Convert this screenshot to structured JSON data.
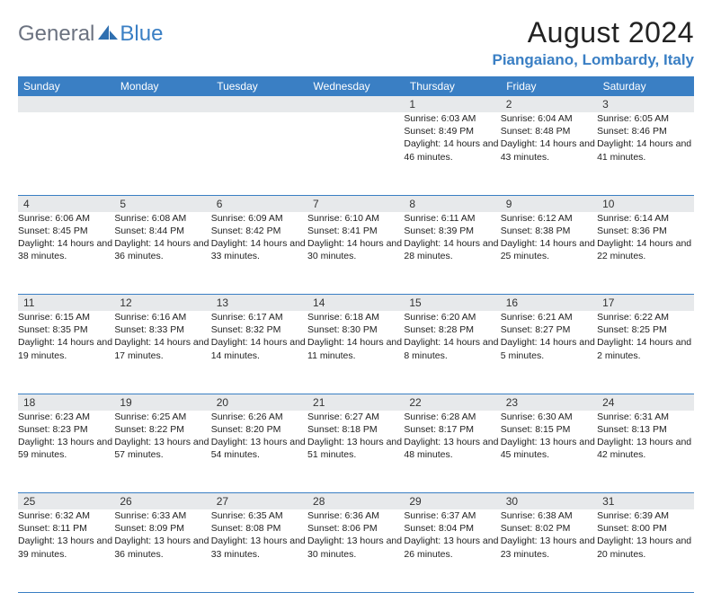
{
  "logo": {
    "general": "General",
    "blue": "Blue"
  },
  "title": "August 2024",
  "location": "Piangaiano, Lombardy, Italy",
  "colors": {
    "brand_blue": "#3a7fc4",
    "logo_gray": "#6b7280",
    "header_bg": "#3a7fc4",
    "header_text": "#ffffff",
    "daynum_bg": "#e7e9eb",
    "rule": "#3a7fc4",
    "page_bg": "#ffffff"
  },
  "weekdays": [
    "Sunday",
    "Monday",
    "Tuesday",
    "Wednesday",
    "Thursday",
    "Friday",
    "Saturday"
  ],
  "weeks": [
    [
      null,
      null,
      null,
      null,
      {
        "n": "1",
        "sunrise": "Sunrise: 6:03 AM",
        "sunset": "Sunset: 8:49 PM",
        "daylight": "Daylight: 14 hours and 46 minutes."
      },
      {
        "n": "2",
        "sunrise": "Sunrise: 6:04 AM",
        "sunset": "Sunset: 8:48 PM",
        "daylight": "Daylight: 14 hours and 43 minutes."
      },
      {
        "n": "3",
        "sunrise": "Sunrise: 6:05 AM",
        "sunset": "Sunset: 8:46 PM",
        "daylight": "Daylight: 14 hours and 41 minutes."
      }
    ],
    [
      {
        "n": "4",
        "sunrise": "Sunrise: 6:06 AM",
        "sunset": "Sunset: 8:45 PM",
        "daylight": "Daylight: 14 hours and 38 minutes."
      },
      {
        "n": "5",
        "sunrise": "Sunrise: 6:08 AM",
        "sunset": "Sunset: 8:44 PM",
        "daylight": "Daylight: 14 hours and 36 minutes."
      },
      {
        "n": "6",
        "sunrise": "Sunrise: 6:09 AM",
        "sunset": "Sunset: 8:42 PM",
        "daylight": "Daylight: 14 hours and 33 minutes."
      },
      {
        "n": "7",
        "sunrise": "Sunrise: 6:10 AM",
        "sunset": "Sunset: 8:41 PM",
        "daylight": "Daylight: 14 hours and 30 minutes."
      },
      {
        "n": "8",
        "sunrise": "Sunrise: 6:11 AM",
        "sunset": "Sunset: 8:39 PM",
        "daylight": "Daylight: 14 hours and 28 minutes."
      },
      {
        "n": "9",
        "sunrise": "Sunrise: 6:12 AM",
        "sunset": "Sunset: 8:38 PM",
        "daylight": "Daylight: 14 hours and 25 minutes."
      },
      {
        "n": "10",
        "sunrise": "Sunrise: 6:14 AM",
        "sunset": "Sunset: 8:36 PM",
        "daylight": "Daylight: 14 hours and 22 minutes."
      }
    ],
    [
      {
        "n": "11",
        "sunrise": "Sunrise: 6:15 AM",
        "sunset": "Sunset: 8:35 PM",
        "daylight": "Daylight: 14 hours and 19 minutes."
      },
      {
        "n": "12",
        "sunrise": "Sunrise: 6:16 AM",
        "sunset": "Sunset: 8:33 PM",
        "daylight": "Daylight: 14 hours and 17 minutes."
      },
      {
        "n": "13",
        "sunrise": "Sunrise: 6:17 AM",
        "sunset": "Sunset: 8:32 PM",
        "daylight": "Daylight: 14 hours and 14 minutes."
      },
      {
        "n": "14",
        "sunrise": "Sunrise: 6:18 AM",
        "sunset": "Sunset: 8:30 PM",
        "daylight": "Daylight: 14 hours and 11 minutes."
      },
      {
        "n": "15",
        "sunrise": "Sunrise: 6:20 AM",
        "sunset": "Sunset: 8:28 PM",
        "daylight": "Daylight: 14 hours and 8 minutes."
      },
      {
        "n": "16",
        "sunrise": "Sunrise: 6:21 AM",
        "sunset": "Sunset: 8:27 PM",
        "daylight": "Daylight: 14 hours and 5 minutes."
      },
      {
        "n": "17",
        "sunrise": "Sunrise: 6:22 AM",
        "sunset": "Sunset: 8:25 PM",
        "daylight": "Daylight: 14 hours and 2 minutes."
      }
    ],
    [
      {
        "n": "18",
        "sunrise": "Sunrise: 6:23 AM",
        "sunset": "Sunset: 8:23 PM",
        "daylight": "Daylight: 13 hours and 59 minutes."
      },
      {
        "n": "19",
        "sunrise": "Sunrise: 6:25 AM",
        "sunset": "Sunset: 8:22 PM",
        "daylight": "Daylight: 13 hours and 57 minutes."
      },
      {
        "n": "20",
        "sunrise": "Sunrise: 6:26 AM",
        "sunset": "Sunset: 8:20 PM",
        "daylight": "Daylight: 13 hours and 54 minutes."
      },
      {
        "n": "21",
        "sunrise": "Sunrise: 6:27 AM",
        "sunset": "Sunset: 8:18 PM",
        "daylight": "Daylight: 13 hours and 51 minutes."
      },
      {
        "n": "22",
        "sunrise": "Sunrise: 6:28 AM",
        "sunset": "Sunset: 8:17 PM",
        "daylight": "Daylight: 13 hours and 48 minutes."
      },
      {
        "n": "23",
        "sunrise": "Sunrise: 6:30 AM",
        "sunset": "Sunset: 8:15 PM",
        "daylight": "Daylight: 13 hours and 45 minutes."
      },
      {
        "n": "24",
        "sunrise": "Sunrise: 6:31 AM",
        "sunset": "Sunset: 8:13 PM",
        "daylight": "Daylight: 13 hours and 42 minutes."
      }
    ],
    [
      {
        "n": "25",
        "sunrise": "Sunrise: 6:32 AM",
        "sunset": "Sunset: 8:11 PM",
        "daylight": "Daylight: 13 hours and 39 minutes."
      },
      {
        "n": "26",
        "sunrise": "Sunrise: 6:33 AM",
        "sunset": "Sunset: 8:09 PM",
        "daylight": "Daylight: 13 hours and 36 minutes."
      },
      {
        "n": "27",
        "sunrise": "Sunrise: 6:35 AM",
        "sunset": "Sunset: 8:08 PM",
        "daylight": "Daylight: 13 hours and 33 minutes."
      },
      {
        "n": "28",
        "sunrise": "Sunrise: 6:36 AM",
        "sunset": "Sunset: 8:06 PM",
        "daylight": "Daylight: 13 hours and 30 minutes."
      },
      {
        "n": "29",
        "sunrise": "Sunrise: 6:37 AM",
        "sunset": "Sunset: 8:04 PM",
        "daylight": "Daylight: 13 hours and 26 minutes."
      },
      {
        "n": "30",
        "sunrise": "Sunrise: 6:38 AM",
        "sunset": "Sunset: 8:02 PM",
        "daylight": "Daylight: 13 hours and 23 minutes."
      },
      {
        "n": "31",
        "sunrise": "Sunrise: 6:39 AM",
        "sunset": "Sunset: 8:00 PM",
        "daylight": "Daylight: 13 hours and 20 minutes."
      }
    ]
  ]
}
